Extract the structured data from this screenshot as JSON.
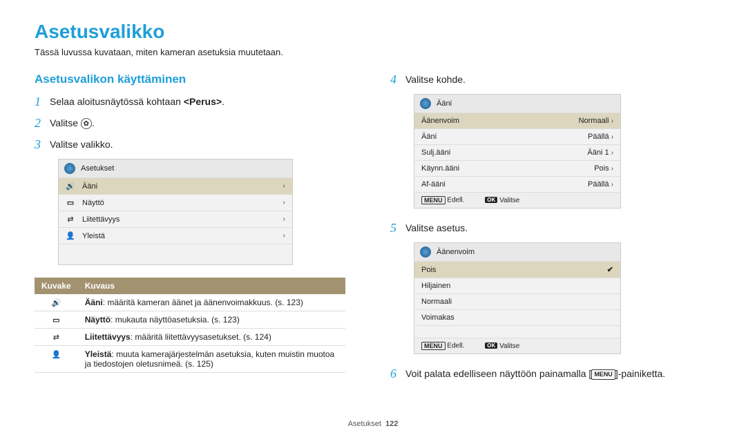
{
  "page": {
    "title": "Asetusvalikko",
    "subtitle": "Tässä luvussa kuvataan, miten kameran asetuksia muutetaan.",
    "footer_label": "Asetukset",
    "footer_page": "122"
  },
  "section_title": "Asetusvalikon käyttäminen",
  "steps": {
    "s1": "Selaa aloitusnäytössä kohtaan <b>&lt;Perus&gt;</b>.",
    "s2_prefix": "Valitse ",
    "s2_suffix": ".",
    "s3": "Valitse valikko.",
    "s4": "Valitse kohde.",
    "s5": "Valitse asetus.",
    "s6_prefix": "Voit palata edelliseen näyttöön painamalla [",
    "s6_key": "MENU",
    "s6_suffix": "]-painiketta."
  },
  "menu1": {
    "header": "Asetukset",
    "rows": {
      "r1": "Ääni",
      "r2": "Näyttö",
      "r3": "Liitettävyys",
      "r4": "Yleistä"
    }
  },
  "menu2": {
    "header": "Ääni",
    "rows": {
      "k1": "Äänenvoim",
      "v1": "Normaali",
      "k2": "Ääni",
      "v2": "Päällä",
      "k3": "Sulj.ääni",
      "v3": "Ääni 1",
      "k4": "Käynn.ääni",
      "v4": "Pois",
      "k5": "Af-ääni",
      "v5": "Päällä"
    },
    "footer_back": "Edell.",
    "footer_sel": "Valitse"
  },
  "menu3": {
    "header": "Äänenvoim",
    "rows": {
      "r1": "Pois",
      "r2": "Hiljainen",
      "r3": "Normaali",
      "r4": "Voimakas"
    },
    "footer_back": "Edell.",
    "footer_sel": "Valitse"
  },
  "desc": {
    "col1": "Kuvake",
    "col2": "Kuvaus",
    "r1": "<b>Ääni</b>: määritä kameran äänet ja äänenvoimakkuus. (s. 123)",
    "r2": "<b>Näyttö</b>: mukauta näyttöasetuksia. (s. 123)",
    "r3": "<b>Liitettävyys</b>: määritä liitettävyysasetukset. (s. 124)",
    "r4": "<b>Yleistä</b>: muuta kamerajärjestelmän asetuksia, kuten muistin muotoa ja tiedostojen oletusnimeä. (s. 125)"
  }
}
